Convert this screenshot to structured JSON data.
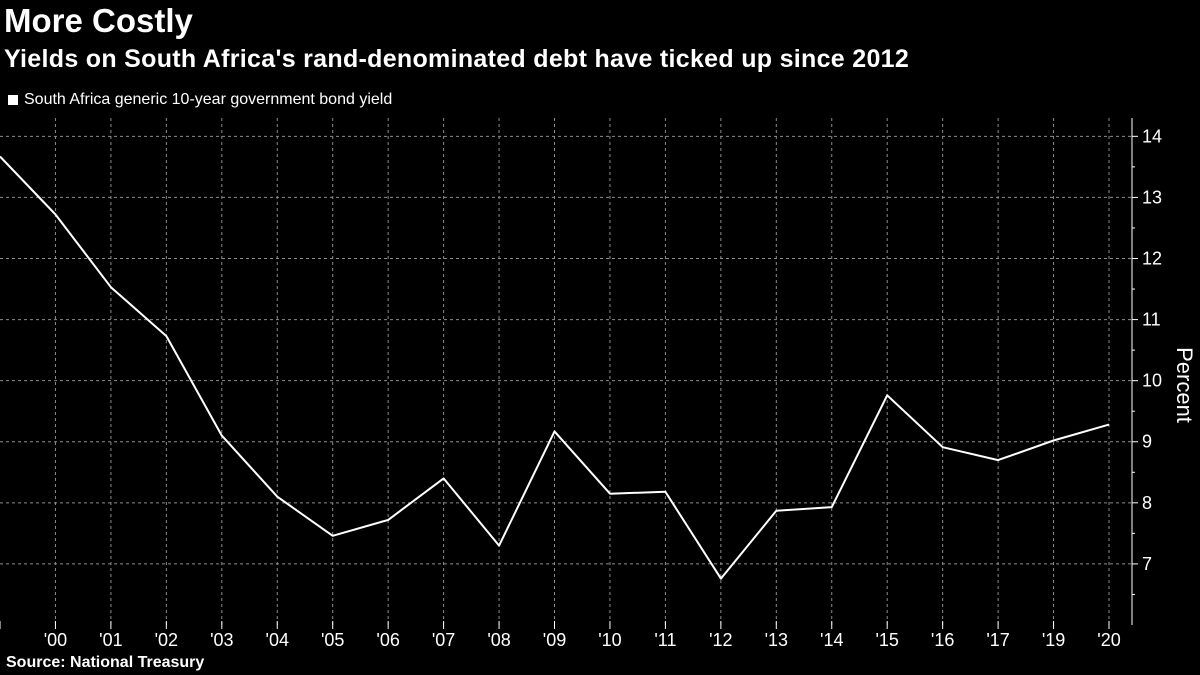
{
  "header": {
    "title": "More Costly",
    "subtitle": "Yields on South Africa's rand-denominated debt have ticked up since 2012"
  },
  "legend": {
    "label": "South Africa generic 10-year government bond yield"
  },
  "footer": {
    "source": "Source:  National Treasury"
  },
  "colors": {
    "background": "#000000",
    "line": "#ffffff",
    "grid": "#8c8c8c"
  },
  "chart_data": {
    "type": "line",
    "title": "More Costly",
    "subtitle": "Yields on South Africa's rand-denominated debt have ticked up since 2012",
    "xlabel": "",
    "ylabel": "Percent",
    "ylim": [
      6,
      14.3
    ],
    "yticks": [
      7,
      8,
      9,
      10,
      11,
      12,
      13,
      14
    ],
    "grid": true,
    "legend_position": "top-left",
    "categories": [
      "",
      "'00",
      "'01",
      "'02",
      "'03",
      "'04",
      "'05",
      "'06",
      "'07",
      "'08",
      "'09",
      "'10",
      "'11",
      "'12",
      "'13",
      "'14",
      "'15",
      "'16",
      "'17",
      "'19",
      "'20"
    ],
    "series": [
      {
        "name": "South Africa generic 10-year government bond yield",
        "values": [
          13.67,
          12.72,
          11.53,
          10.73,
          9.1,
          8.1,
          7.46,
          7.72,
          8.4,
          7.3,
          9.17,
          8.15,
          8.18,
          6.76,
          7.87,
          7.93,
          9.76,
          8.91,
          8.7,
          9.02,
          9.28
        ]
      }
    ]
  }
}
